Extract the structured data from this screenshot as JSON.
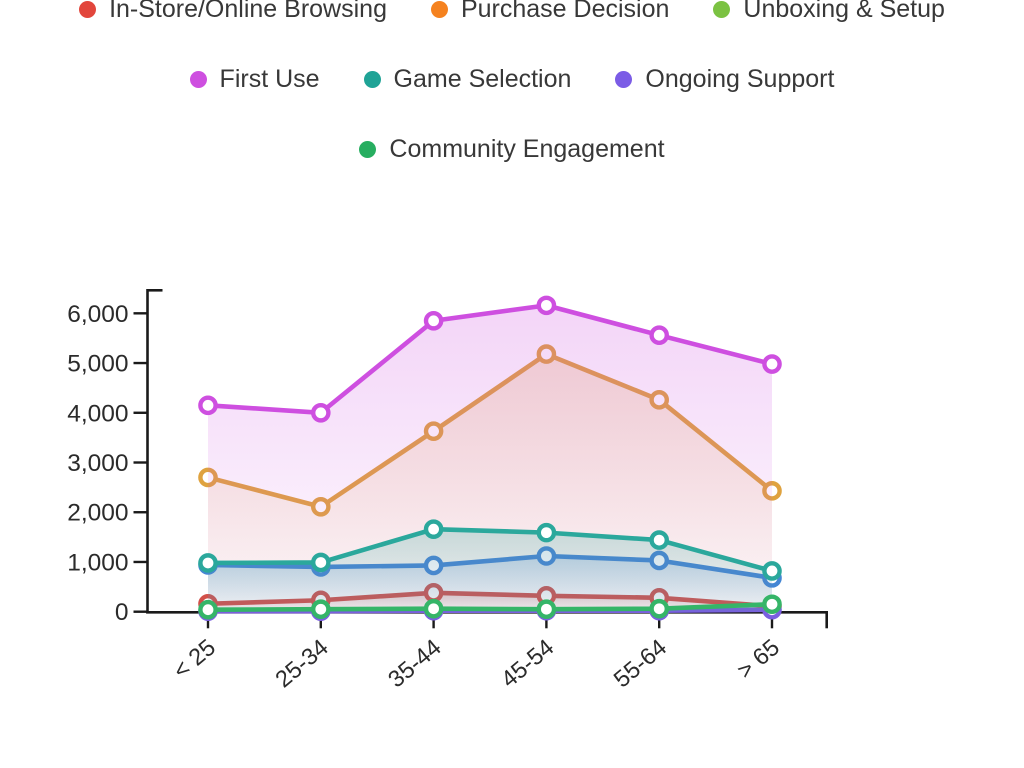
{
  "page": {
    "background": "#ffffff",
    "text_color": "#383838",
    "axis_color": "#1a1a1a"
  },
  "legend": {
    "rows": [
      [
        "In-Store/Online Browsing",
        "Purchase Decision",
        "Unboxing & Setup"
      ],
      [
        "First Use",
        "Game Selection",
        "Ongoing Support"
      ],
      [
        "Community Engagement"
      ]
    ]
  },
  "chart_data": {
    "type": "line",
    "title": "",
    "xlabel": "",
    "ylabel": "",
    "categories": [
      "< 25",
      "25-34",
      "35-44",
      "45-54",
      "55-64",
      "> 65"
    ],
    "ylim": [
      0,
      6500
    ],
    "yticks": {
      "values": [
        0,
        1000,
        2000,
        3000,
        4000,
        5000,
        6000
      ],
      "labels": [
        "0",
        "1,000",
        "2,000",
        "3,000",
        "4,000",
        "5,000",
        "6,000"
      ]
    },
    "grid": false,
    "legend_position": "top",
    "marker_style": "open-circle",
    "area_fill": true,
    "series": [
      {
        "name": "In-Store/Online Browsing",
        "legend_color": "#E2463C",
        "line_color": "#D25049",
        "values": [
          160,
          230,
          380,
          320,
          280,
          110
        ]
      },
      {
        "name": "Purchase Decision",
        "legend_color": "#F5821F",
        "line_color": "#DFA23F",
        "values": [
          2700,
          2110,
          3630,
          5180,
          4260,
          2430
        ]
      },
      {
        "name": "Unboxing & Setup",
        "legend_color": "#7BC242",
        "line_color": "#4486D4",
        "values": [
          940,
          900,
          930,
          1120,
          1030,
          680
        ]
      },
      {
        "name": "First Use",
        "legend_color": "#CE4FE0",
        "line_color": "#CE4FE0",
        "values": [
          4150,
          4000,
          5850,
          6160,
          5560,
          4980
        ]
      },
      {
        "name": "Game Selection",
        "legend_color": "#1FA396",
        "line_color": "#2BA89C",
        "values": [
          980,
          990,
          1660,
          1590,
          1440,
          820
        ]
      },
      {
        "name": "Ongoing Support",
        "legend_color": "#7B5CE6",
        "line_color": "#7A5FE0",
        "values": [
          10,
          10,
          20,
          20,
          20,
          40
        ]
      },
      {
        "name": "Community Engagement",
        "legend_color": "#27AE60",
        "line_color": "#35B568",
        "values": [
          40,
          50,
          60,
          50,
          60,
          150
        ]
      }
    ]
  }
}
